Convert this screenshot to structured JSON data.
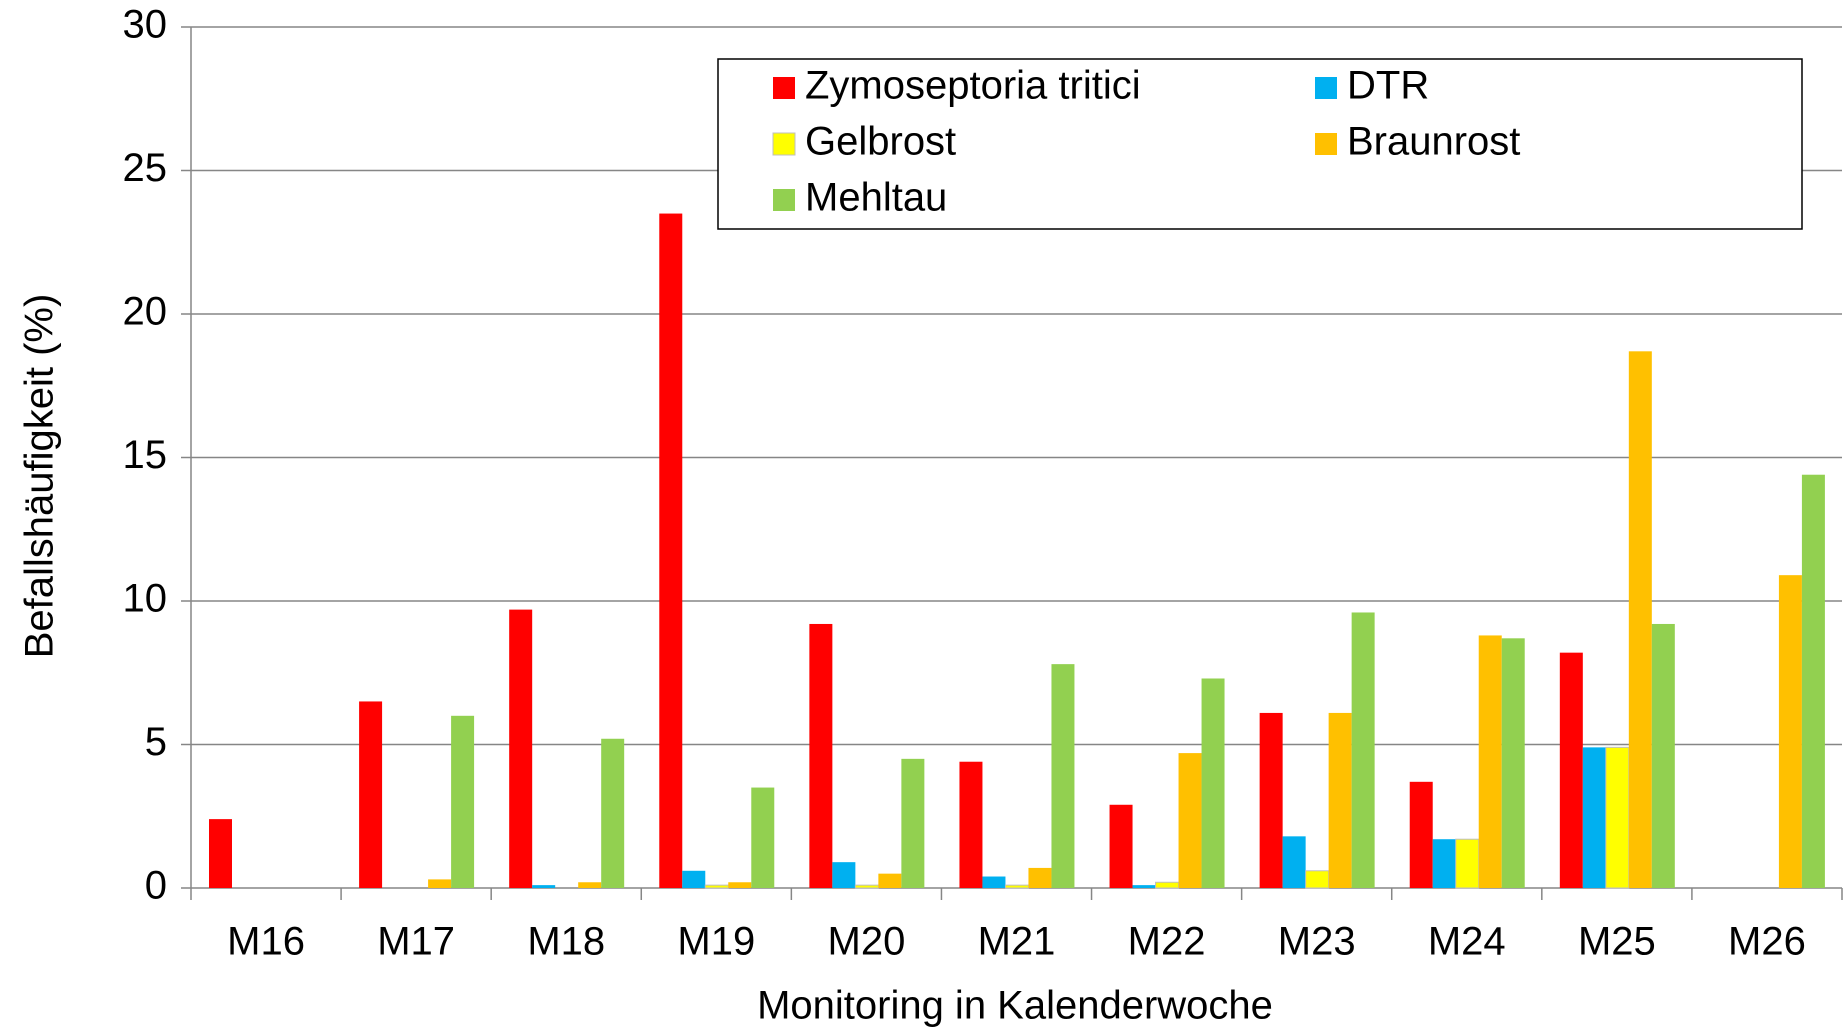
{
  "chart_data": {
    "type": "bar",
    "x_label": "Monitoring in Kalenderwoche",
    "y_label": "Befallshäufigkeit (%)",
    "categories": [
      "M16",
      "M17",
      "M18",
      "M19",
      "M20",
      "M21",
      "M22",
      "M23",
      "M24",
      "M25",
      "M26"
    ],
    "series": [
      {
        "name": "Zymoseptoria tritici",
        "color": "#ff0000",
        "values": [
          2.4,
          6.5,
          9.7,
          23.5,
          9.2,
          4.4,
          2.9,
          6.1,
          3.7,
          8.2,
          0
        ]
      },
      {
        "name": "DTR",
        "color": "#00b0f0",
        "values": [
          0,
          0,
          0.1,
          0.6,
          0.9,
          0.4,
          0.1,
          1.8,
          1.7,
          4.9,
          0
        ]
      },
      {
        "name": "Gelbrost",
        "color": "#ffff00",
        "values": [
          0,
          0,
          0,
          0.1,
          0.1,
          0.1,
          0.2,
          0.6,
          1.7,
          4.9,
          0
        ]
      },
      {
        "name": "Braunrost",
        "color": "#ffc000",
        "values": [
          0,
          0.3,
          0.2,
          0.2,
          0.5,
          0.7,
          4.7,
          6.1,
          8.8,
          18.7,
          10.9
        ]
      },
      {
        "name": "Mehltau",
        "color": "#92d050",
        "values": [
          0,
          6.0,
          5.2,
          3.5,
          4.5,
          7.8,
          7.3,
          9.6,
          8.7,
          9.2,
          14.4
        ]
      }
    ],
    "ylim": [
      0,
      30
    ],
    "yticks": [
      0,
      5,
      10,
      15,
      20,
      25,
      30
    ],
    "grid": true,
    "legend": "top-right"
  }
}
